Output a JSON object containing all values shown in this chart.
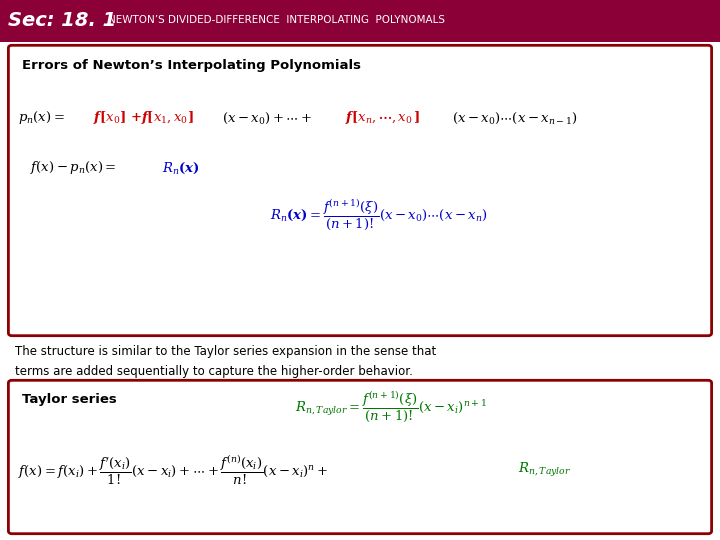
{
  "header_bg": "#8B0036",
  "header_text_color": "#FFFFFF",
  "slide_bg": "#FFFFFF",
  "box_border_color": "#8B0000",
  "box_bg": "#FFFFFF",
  "eq_black": "#000000",
  "eq_red": "#CC0000",
  "eq_blue": "#0000CC",
  "eq_green": "#007700",
  "header_bold": "Sec: 18. 1",
  "header_normal": "NEWTON’S DIVIDED-DIFFERENCE  INTERPOLATING  POLYNOMALS",
  "title1": "Errors of Newton’s Interpolating Polynomials",
  "title2": "Taylor series",
  "body_text": "The structure is similar to the Taylor series expansion in the sense that\nterms are added sequentially to capture the higher-order behavior."
}
